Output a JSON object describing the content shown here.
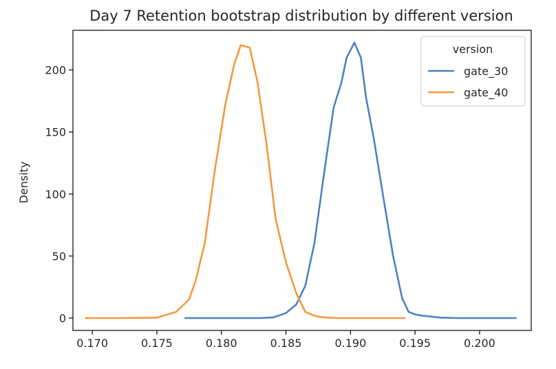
{
  "chart_data": {
    "type": "line",
    "title": "Day 7 Retention bootstrap distribution by different version",
    "xlabel": "",
    "ylabel": "Density",
    "xlim": [
      0.1685,
      0.204
    ],
    "ylim": [
      -10,
      232
    ],
    "xticks": [
      0.17,
      0.175,
      0.18,
      0.185,
      0.19,
      0.195,
      0.2
    ],
    "xtick_labels": [
      "0.170",
      "0.175",
      "0.180",
      "0.185",
      "0.190",
      "0.195",
      "0.200"
    ],
    "yticks": [
      0,
      50,
      100,
      150,
      200
    ],
    "ytick_labels": [
      "0",
      "50",
      "100",
      "150",
      "200"
    ],
    "grid": false,
    "legend": {
      "title": "version",
      "placement": "top-right"
    },
    "series": [
      {
        "name": "gate_30",
        "color": "#4c82bf",
        "x": [
          0.1772,
          0.18,
          0.183,
          0.184,
          0.185,
          0.1858,
          0.1865,
          0.1872,
          0.188,
          0.1887,
          0.1893,
          0.1897,
          0.1903,
          0.1908,
          0.1912,
          0.1918,
          0.1925,
          0.1933,
          0.194,
          0.1945,
          0.195,
          0.1955,
          0.196,
          0.197,
          0.1985,
          0.2,
          0.2028
        ],
        "y": [
          0,
          0,
          0,
          0.5,
          4,
          11,
          26,
          60,
          120,
          170,
          190,
          210,
          222,
          210,
          178,
          145,
          100,
          50,
          16,
          5,
          3,
          2,
          1.5,
          0.3,
          0,
          0,
          0
        ]
      },
      {
        "name": "gate_40",
        "color": "#f0993e",
        "x": [
          0.1695,
          0.172,
          0.175,
          0.1765,
          0.1775,
          0.178,
          0.1787,
          0.1795,
          0.1803,
          0.181,
          0.1815,
          0.1822,
          0.1828,
          0.1835,
          0.1842,
          0.185,
          0.1858,
          0.1865,
          0.1873,
          0.188,
          0.189,
          0.191,
          0.1942
        ],
        "y": [
          0,
          0,
          0.3,
          5,
          15,
          30,
          60,
          120,
          172,
          205,
          220,
          218,
          190,
          140,
          80,
          45,
          20,
          5,
          1.5,
          0.5,
          0,
          0,
          0
        ]
      }
    ]
  }
}
